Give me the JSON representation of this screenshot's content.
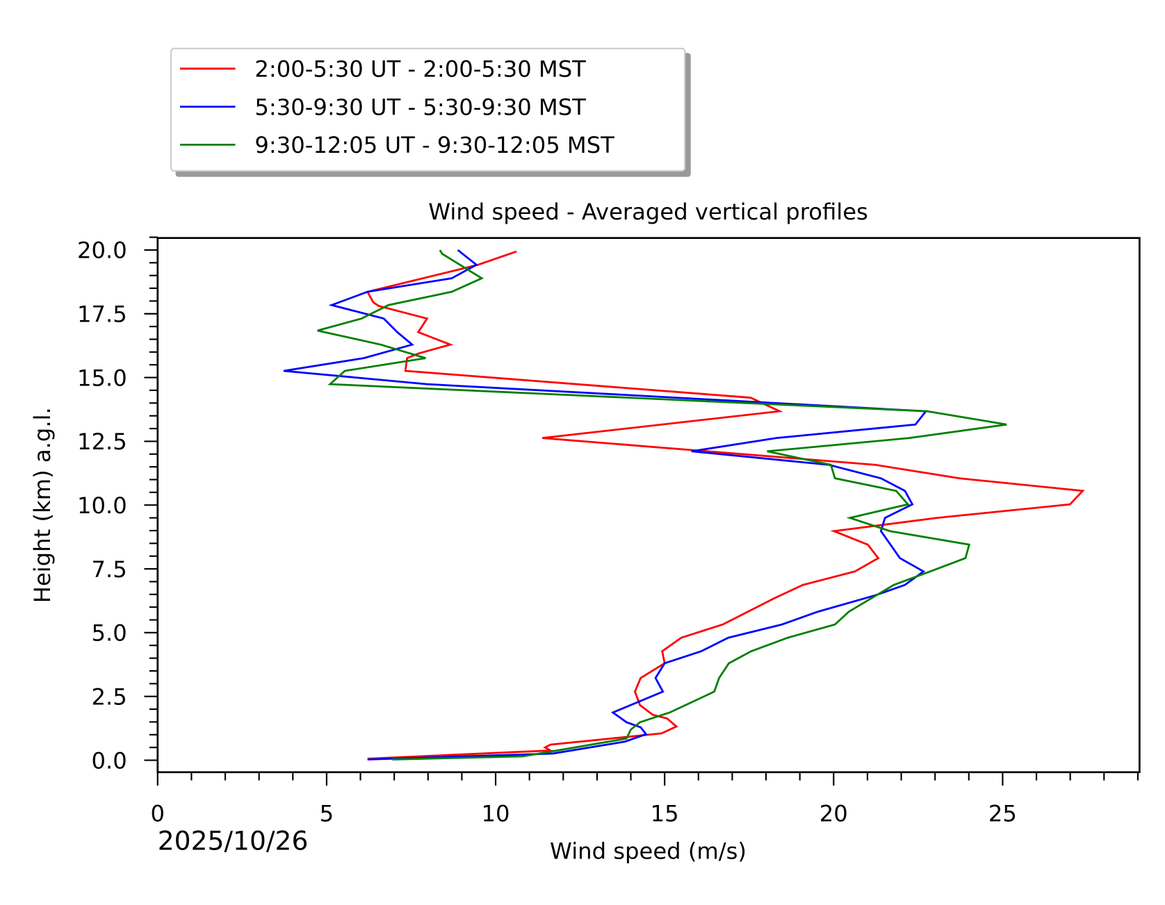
{
  "chart_data": {
    "type": "line",
    "title": "Wind speed - Averaged vertical profiles",
    "xlabel": "Wind speed (m/s)",
    "ylabel": "Height (km) a.g.l.",
    "date_label": "2025/10/26",
    "xlim": [
      0,
      29.05
    ],
    "ylim": [
      -0.47,
      20.47
    ],
    "x_major_ticks": [
      0,
      5,
      10,
      15,
      20,
      25
    ],
    "x_tick_labels": [
      "0",
      "5",
      "10",
      "15",
      "20",
      "25"
    ],
    "y_major_ticks": [
      0,
      2.5,
      5,
      7.5,
      10,
      12.5,
      15,
      17.5,
      20
    ],
    "y_tick_labels": [
      "0.0",
      "2.5",
      "5.0",
      "7.5",
      "10.0",
      "12.5",
      "15.0",
      "17.5",
      "20.0"
    ],
    "grid": false,
    "legend_placement": "above-top-left",
    "series": [
      {
        "name": "2:00-5:30 UT - 2:00-5:30 MST",
        "color": "#ff0000",
        "points": [
          [
            10.62,
            19.94
          ],
          [
            9.48,
            19.42
          ],
          [
            6.21,
            18.36
          ],
          [
            6.38,
            17.95
          ],
          [
            6.54,
            17.81
          ],
          [
            7.97,
            17.31
          ],
          [
            7.71,
            16.78
          ],
          [
            8.66,
            16.29
          ],
          [
            7.71,
            15.94
          ],
          [
            7.38,
            15.76
          ],
          [
            7.33,
            15.26
          ],
          [
            17.54,
            14.21
          ],
          [
            18.4,
            13.68
          ],
          [
            11.38,
            12.63
          ],
          [
            21.23,
            11.58
          ],
          [
            23.72,
            11.05
          ],
          [
            27.37,
            10.56
          ],
          [
            26.99,
            10.03
          ],
          [
            23.06,
            9.5
          ],
          [
            20.01,
            8.98
          ],
          [
            21.01,
            8.45
          ],
          [
            21.32,
            7.92
          ],
          [
            20.63,
            7.4
          ],
          [
            19.09,
            6.87
          ],
          [
            18.25,
            6.35
          ],
          [
            16.72,
            5.32
          ],
          [
            15.49,
            4.8
          ],
          [
            14.93,
            4.27
          ],
          [
            15.0,
            3.8
          ],
          [
            14.29,
            3.22
          ],
          [
            14.12,
            2.69
          ],
          [
            14.27,
            2.16
          ],
          [
            14.65,
            1.78
          ],
          [
            15.07,
            1.64
          ],
          [
            15.35,
            1.32
          ],
          [
            14.91,
            1.05
          ],
          [
            11.62,
            0.61
          ],
          [
            11.46,
            0.5
          ],
          [
            11.62,
            0.38
          ],
          [
            6.21,
            0.06
          ]
        ]
      },
      {
        "name": "5:30-9:30 UT - 5:30-9:30 MST",
        "color": "#0000ff",
        "points": [
          [
            8.88,
            20.0
          ],
          [
            9.43,
            19.42
          ],
          [
            8.7,
            18.89
          ],
          [
            6.21,
            18.36
          ],
          [
            5.15,
            17.84
          ],
          [
            6.69,
            17.31
          ],
          [
            7.09,
            16.78
          ],
          [
            7.53,
            16.29
          ],
          [
            6.1,
            15.76
          ],
          [
            3.73,
            15.26
          ],
          [
            7.97,
            14.74
          ],
          [
            22.73,
            13.68
          ],
          [
            22.42,
            13.16
          ],
          [
            18.31,
            12.63
          ],
          [
            15.79,
            12.11
          ],
          [
            19.86,
            11.58
          ],
          [
            21.4,
            11.05
          ],
          [
            22.11,
            10.56
          ],
          [
            22.33,
            10.03
          ],
          [
            21.52,
            9.5
          ],
          [
            21.4,
            8.98
          ],
          [
            21.96,
            7.92
          ],
          [
            22.66,
            7.4
          ],
          [
            22.11,
            6.87
          ],
          [
            21.23,
            6.46
          ],
          [
            19.53,
            5.82
          ],
          [
            18.47,
            5.32
          ],
          [
            16.88,
            4.8
          ],
          [
            16.08,
            4.27
          ],
          [
            15.0,
            3.8
          ],
          [
            14.73,
            3.22
          ],
          [
            14.95,
            2.69
          ],
          [
            13.47,
            1.87
          ],
          [
            13.87,
            1.49
          ],
          [
            14.29,
            1.29
          ],
          [
            14.45,
            1.02
          ],
          [
            13.83,
            0.73
          ],
          [
            11.69,
            0.26
          ],
          [
            6.21,
            0.03
          ]
        ]
      },
      {
        "name": "9:30-12:05 UT - 9:30-12:05 MST",
        "color": "#008000",
        "points": [
          [
            8.35,
            20.0
          ],
          [
            8.42,
            19.85
          ],
          [
            9.59,
            18.89
          ],
          [
            8.7,
            18.36
          ],
          [
            6.83,
            17.84
          ],
          [
            6.03,
            17.31
          ],
          [
            4.73,
            16.84
          ],
          [
            6.6,
            16.29
          ],
          [
            7.93,
            15.76
          ],
          [
            5.54,
            15.26
          ],
          [
            5.1,
            14.74
          ],
          [
            22.77,
            13.68
          ],
          [
            25.12,
            13.16
          ],
          [
            22.24,
            12.63
          ],
          [
            18.03,
            12.11
          ],
          [
            19.92,
            11.58
          ],
          [
            20.04,
            11.05
          ],
          [
            21.85,
            10.56
          ],
          [
            22.2,
            10.03
          ],
          [
            20.48,
            9.5
          ],
          [
            21.67,
            8.98
          ],
          [
            24.01,
            8.45
          ],
          [
            23.9,
            7.92
          ],
          [
            22.86,
            7.4
          ],
          [
            21.78,
            6.87
          ],
          [
            20.45,
            5.82
          ],
          [
            20.04,
            5.32
          ],
          [
            18.64,
            4.8
          ],
          [
            17.56,
            4.27
          ],
          [
            16.9,
            3.8
          ],
          [
            16.61,
            3.22
          ],
          [
            16.47,
            2.69
          ],
          [
            15.15,
            1.87
          ],
          [
            14.27,
            1.49
          ],
          [
            14.0,
            1.2
          ],
          [
            13.87,
            0.85
          ],
          [
            10.8,
            0.15
          ],
          [
            6.94,
            0.03
          ]
        ]
      }
    ]
  }
}
